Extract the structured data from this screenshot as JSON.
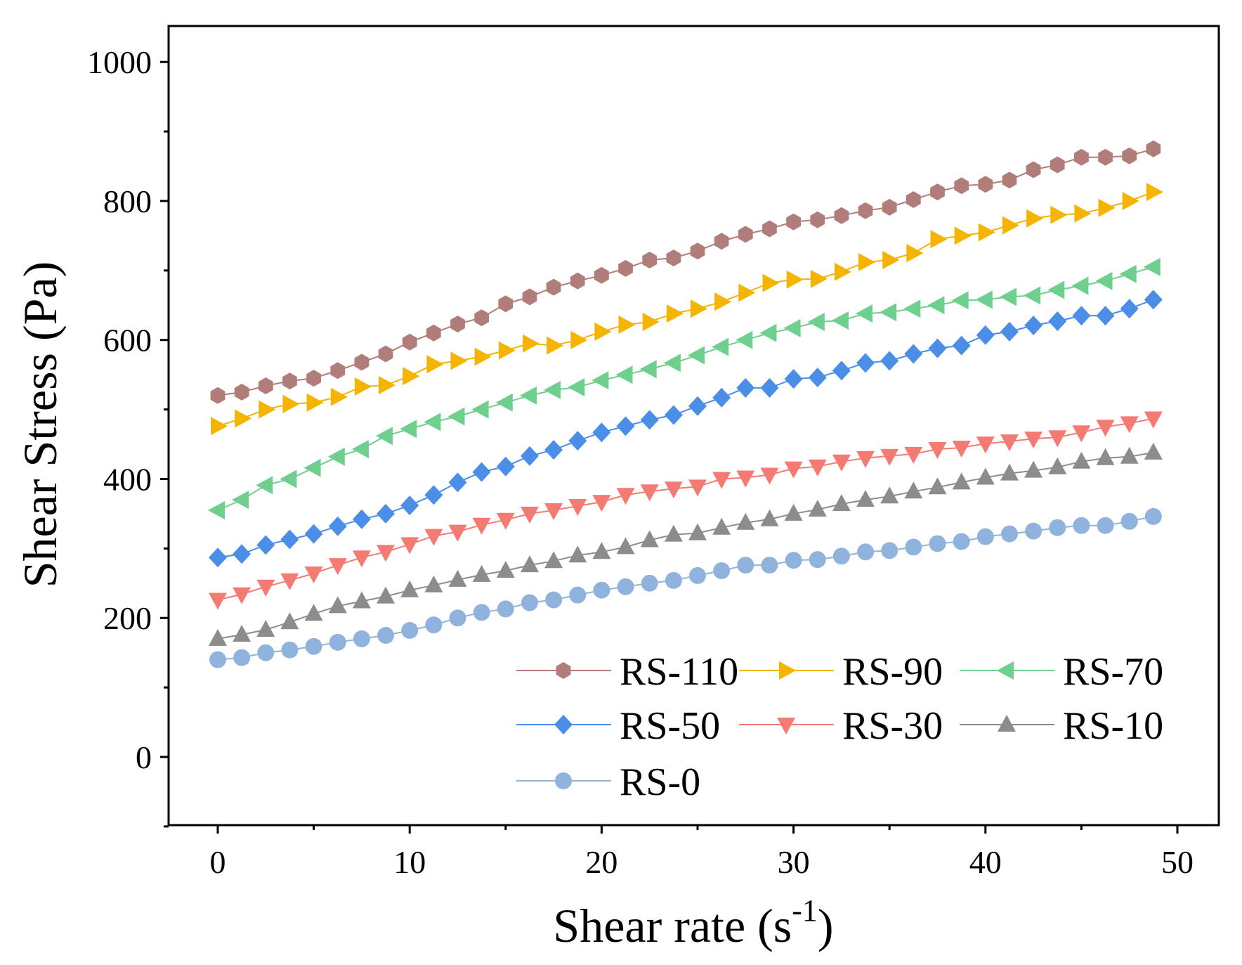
{
  "chart_data": {
    "type": "line",
    "title": "",
    "xlabel": "Shear rate",
    "xlabel_unit_base": "s",
    "xlabel_unit_exp": "-1",
    "ylabel": "Shear Stress (Pa)",
    "xlim": [
      -2.5,
      52.5
    ],
    "ylim": [
      -100,
      1050
    ],
    "xticks": [
      0,
      10,
      20,
      30,
      40,
      50
    ],
    "yticks": [
      0,
      200,
      400,
      600,
      800,
      1000
    ],
    "x_start": 0,
    "x_step": 1.25,
    "legend": {
      "placement": "bottom-right",
      "columns": 3
    },
    "series": [
      {
        "name": "RS-110",
        "color": "#b07d7b",
        "marker": "hexagon",
        "values": [
          520,
          525,
          534,
          541,
          545,
          556,
          568,
          580,
          597,
          610,
          623,
          632,
          652,
          662,
          676,
          685,
          693,
          703,
          715,
          718,
          728,
          742,
          752,
          760,
          770,
          773,
          779,
          786,
          791,
          802,
          813,
          822,
          824,
          830,
          845,
          852,
          863,
          863,
          865,
          875
        ]
      },
      {
        "name": "RS-90",
        "color": "#f5b400",
        "marker": "triangle-right",
        "values": [
          476,
          487,
          500,
          508,
          510,
          518,
          533,
          535,
          548,
          565,
          570,
          576,
          585,
          595,
          592,
          600,
          612,
          622,
          626,
          638,
          645,
          655,
          668,
          682,
          687,
          688,
          698,
          712,
          715,
          725,
          745,
          750,
          755,
          765,
          775,
          780,
          782,
          790,
          800,
          813
        ]
      },
      {
        "name": "RS-70",
        "color": "#6fcf8f",
        "marker": "triangle-left",
        "values": [
          355,
          370,
          391,
          400,
          416,
          432,
          443,
          462,
          472,
          482,
          490,
          500,
          510,
          520,
          528,
          532,
          542,
          550,
          558,
          567,
          578,
          590,
          600,
          610,
          617,
          626,
          628,
          638,
          640,
          645,
          650,
          657,
          658,
          662,
          664,
          672,
          678,
          685,
          695,
          705
        ]
      },
      {
        "name": "RS-50",
        "color": "#4a8ee8",
        "marker": "diamond",
        "values": [
          287,
          292,
          305,
          313,
          321,
          332,
          342,
          350,
          362,
          377,
          395,
          410,
          418,
          433,
          442,
          455,
          467,
          476,
          485,
          492,
          505,
          517,
          531,
          531,
          544,
          546,
          556,
          567,
          570,
          580,
          588,
          592,
          607,
          612,
          621,
          627,
          635,
          635,
          645,
          658
        ]
      },
      {
        "name": "RS-30",
        "color": "#f37b73",
        "marker": "triangle-down",
        "values": [
          226,
          234,
          245,
          254,
          264,
          276,
          287,
          295,
          306,
          318,
          324,
          334,
          341,
          350,
          355,
          361,
          367,
          377,
          382,
          386,
          389,
          400,
          402,
          406,
          415,
          418,
          425,
          430,
          433,
          436,
          443,
          445,
          451,
          454,
          458,
          460,
          467,
          475,
          480,
          487
        ]
      },
      {
        "name": "RS-10",
        "color": "#8c8c8c",
        "marker": "triangle-up",
        "values": [
          170,
          176,
          183,
          194,
          206,
          217,
          224,
          231,
          240,
          247,
          255,
          262,
          268,
          276,
          282,
          290,
          295,
          302,
          312,
          320,
          322,
          330,
          337,
          342,
          350,
          356,
          364,
          370,
          375,
          382,
          388,
          395,
          402,
          408,
          412,
          417,
          425,
          430,
          432,
          438
        ]
      },
      {
        "name": "RS-0",
        "color": "#8fb3dd",
        "marker": "circle",
        "values": [
          140,
          143,
          150,
          154,
          159,
          165,
          170,
          175,
          182,
          190,
          200,
          208,
          213,
          222,
          226,
          233,
          240,
          245,
          250,
          254,
          261,
          268,
          276,
          276,
          283,
          284,
          289,
          295,
          297,
          302,
          307,
          310,
          317,
          321,
          325,
          330,
          333,
          333,
          339,
          346
        ]
      }
    ]
  }
}
